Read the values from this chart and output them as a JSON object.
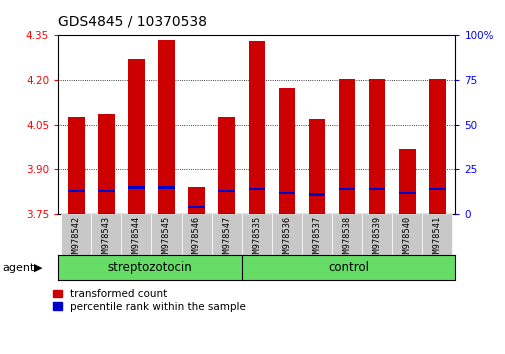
{
  "title": "GDS4845 / 10370538",
  "samples": [
    "GSM978542",
    "GSM978543",
    "GSM978544",
    "GSM978545",
    "GSM978546",
    "GSM978547",
    "GSM978535",
    "GSM978536",
    "GSM978537",
    "GSM978538",
    "GSM978539",
    "GSM978540",
    "GSM978541"
  ],
  "red_values": [
    4.075,
    4.085,
    4.27,
    4.335,
    3.84,
    4.075,
    4.33,
    4.175,
    4.07,
    4.205,
    4.205,
    3.97,
    4.205
  ],
  "blue_percentiles": [
    13,
    13,
    15,
    15,
    4,
    13,
    14,
    12,
    11,
    14,
    14,
    12,
    14
  ],
  "ylim_left": [
    3.75,
    4.35
  ],
  "ylim_right": [
    0,
    100
  ],
  "yticks_left": [
    3.75,
    3.9,
    4.05,
    4.2,
    4.35
  ],
  "yticks_right": [
    0,
    25,
    50,
    75,
    100
  ],
  "ytick_labels_right": [
    "0",
    "25",
    "50",
    "75",
    "100%"
  ],
  "bar_color_red": "#cc0000",
  "bar_color_blue": "#0000cc",
  "agent_label": "agent",
  "group_label_strep": "streptozotocin",
  "group_label_ctrl": "control",
  "legend_red": "transformed count",
  "legend_blue": "percentile rank within the sample",
  "baseline": 3.75,
  "bar_width": 0.55,
  "n_strep": 6,
  "n_ctrl": 7,
  "group_color": "#66dd66"
}
